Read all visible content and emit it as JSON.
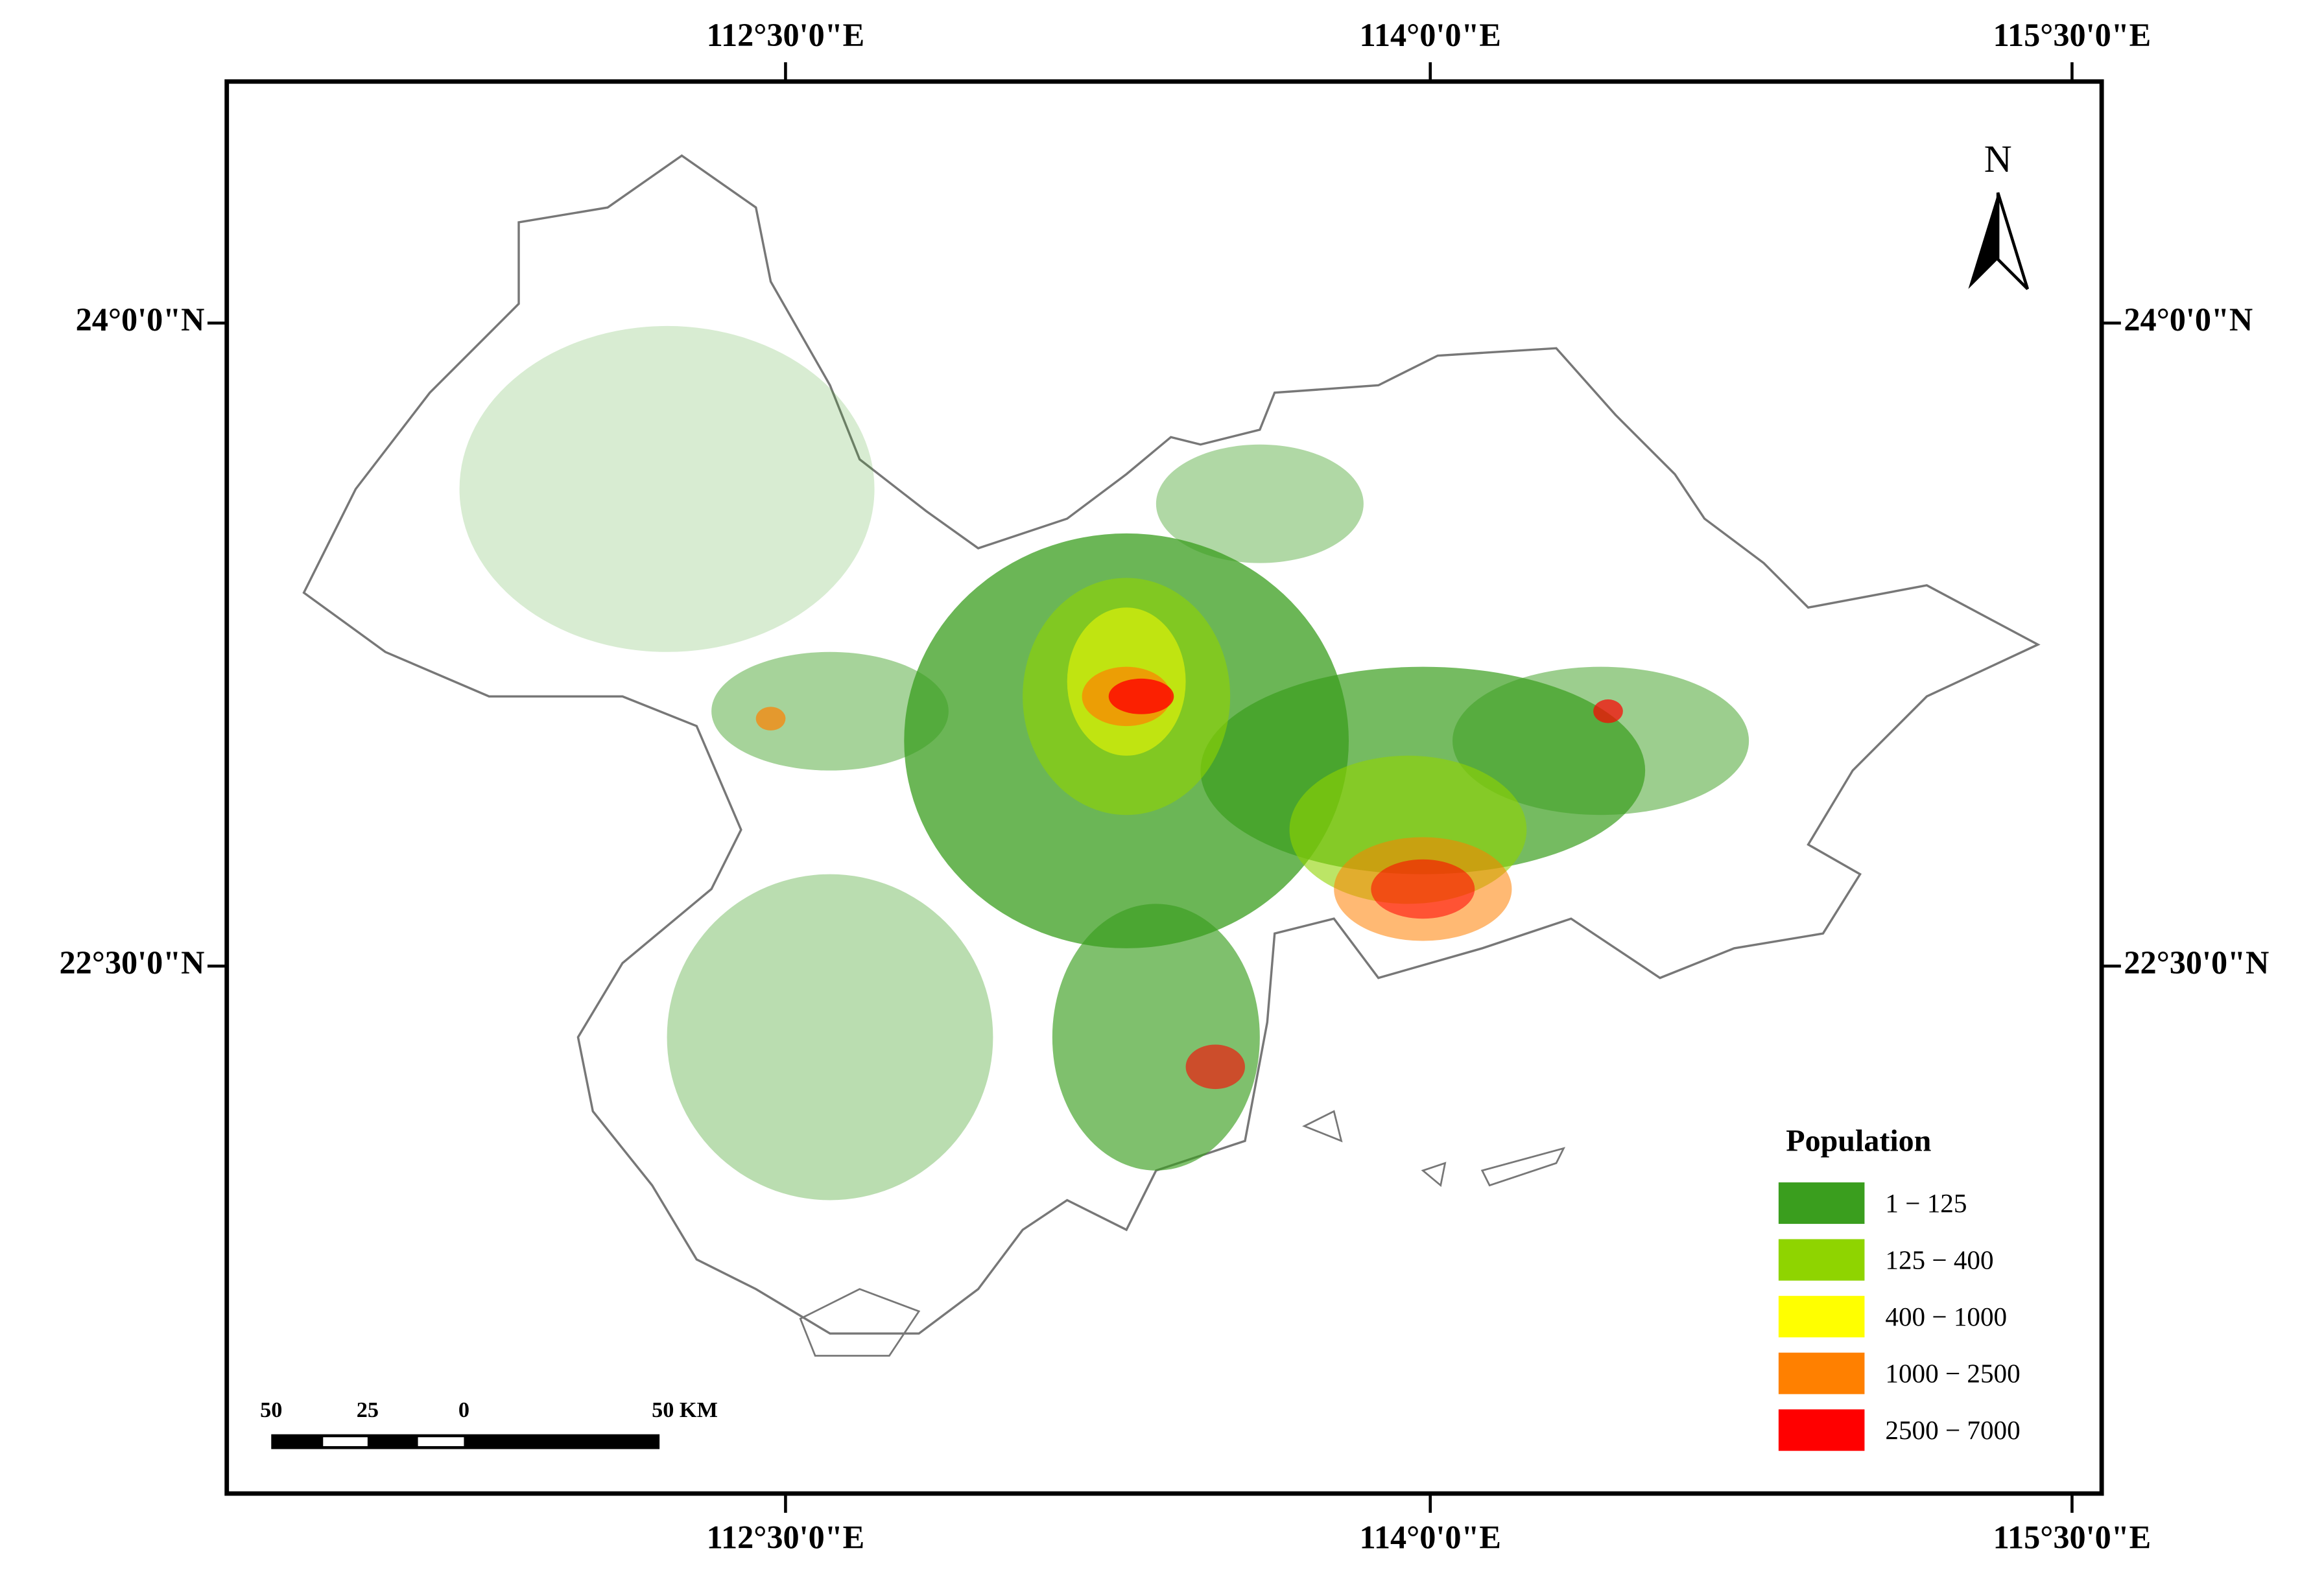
{
  "map": {
    "top_labels": [
      "112°30'0\"E",
      "114°0'0\"E",
      "115°30'0\"E"
    ],
    "bottom_labels": [
      "112°30'0\"E",
      "114°0'0\"E",
      "115°30'0\"E"
    ],
    "left_labels": [
      "24°0'0\"N",
      "22°30'0\"N"
    ],
    "right_labels": [
      "24°0'0\"N",
      "22°30'0\"N"
    ],
    "north": "N",
    "legend": {
      "title": "Population",
      "items": [
        {
          "label": "1 − 125",
          "color": "#3a9e1e"
        },
        {
          "label": "125 − 400",
          "color": "#8fd400"
        },
        {
          "label": "400 − 1000",
          "color": "#ffff00"
        },
        {
          "label": "1000 − 2500",
          "color": "#ff8000"
        },
        {
          "label": "2500 − 7000",
          "color": "#ff0000"
        }
      ]
    },
    "scale_bar": {
      "labels": [
        "50",
        "25",
        "0",
        "50 KM"
      ]
    }
  }
}
